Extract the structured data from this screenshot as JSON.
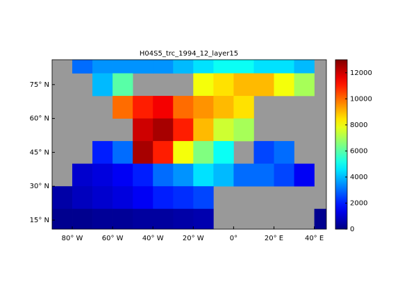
{
  "chart_data": {
    "type": "heatmap",
    "title": "H04S5_trc_1994_12_layer15",
    "colormap": "jet",
    "land_color": "#999999",
    "x": [
      -90,
      -80,
      -70,
      -60,
      -50,
      -40,
      -30,
      -20,
      -10,
      0,
      10,
      20,
      30,
      40
    ],
    "y": [
      80,
      70,
      60,
      50,
      40,
      30,
      20,
      10
    ],
    "cell_width": 10,
    "cell_height": 10,
    "z": [
      [
        null,
        3000,
        3500,
        3500,
        3500,
        3500,
        4000,
        4500,
        5000,
        5000,
        4500,
        4500,
        4000,
        null
      ],
      [
        null,
        null,
        4000,
        6000,
        null,
        null,
        null,
        8000,
        8500,
        9000,
        9000,
        8000,
        7000,
        null
      ],
      [
        null,
        null,
        null,
        10000,
        11000,
        11500,
        10000,
        9500,
        9000,
        8500,
        null,
        null,
        null,
        null
      ],
      [
        null,
        null,
        null,
        null,
        12000,
        12500,
        11000,
        9000,
        7500,
        7000,
        null,
        null,
        null,
        null
      ],
      [
        null,
        null,
        2000,
        3000,
        12500,
        11000,
        8000,
        6500,
        5000,
        null,
        2500,
        3000,
        null,
        null
      ],
      [
        null,
        1000,
        1200,
        1500,
        2000,
        3000,
        3500,
        4500,
        4000,
        3000,
        3000,
        2500,
        1500,
        null
      ],
      [
        500,
        800,
        1000,
        1200,
        1500,
        2000,
        2200,
        2500,
        null,
        null,
        null,
        null,
        null,
        null
      ],
      [
        200,
        200,
        300,
        300,
        400,
        400,
        500,
        600,
        null,
        null,
        null,
        null,
        null,
        200
      ]
    ],
    "xlim": [
      -90,
      46
    ],
    "ylim": [
      11,
      86
    ],
    "xticks": [
      {
        "value": -80,
        "label": "80° W"
      },
      {
        "value": -60,
        "label": "60° W"
      },
      {
        "value": -40,
        "label": "40° W"
      },
      {
        "value": -20,
        "label": "20° W"
      },
      {
        "value": 0,
        "label": "0°"
      },
      {
        "value": 20,
        "label": "20° E"
      },
      {
        "value": 40,
        "label": "40° E"
      }
    ],
    "yticks": [
      {
        "value": 15,
        "label": "15° N"
      },
      {
        "value": 30,
        "label": "30° N"
      },
      {
        "value": 45,
        "label": "45° N"
      },
      {
        "value": 60,
        "label": "60° N"
      },
      {
        "value": 75,
        "label": "75° N"
      }
    ],
    "clim": [
      0,
      13000
    ],
    "cticks": [
      0,
      2000,
      4000,
      6000,
      8000,
      10000,
      12000
    ]
  }
}
